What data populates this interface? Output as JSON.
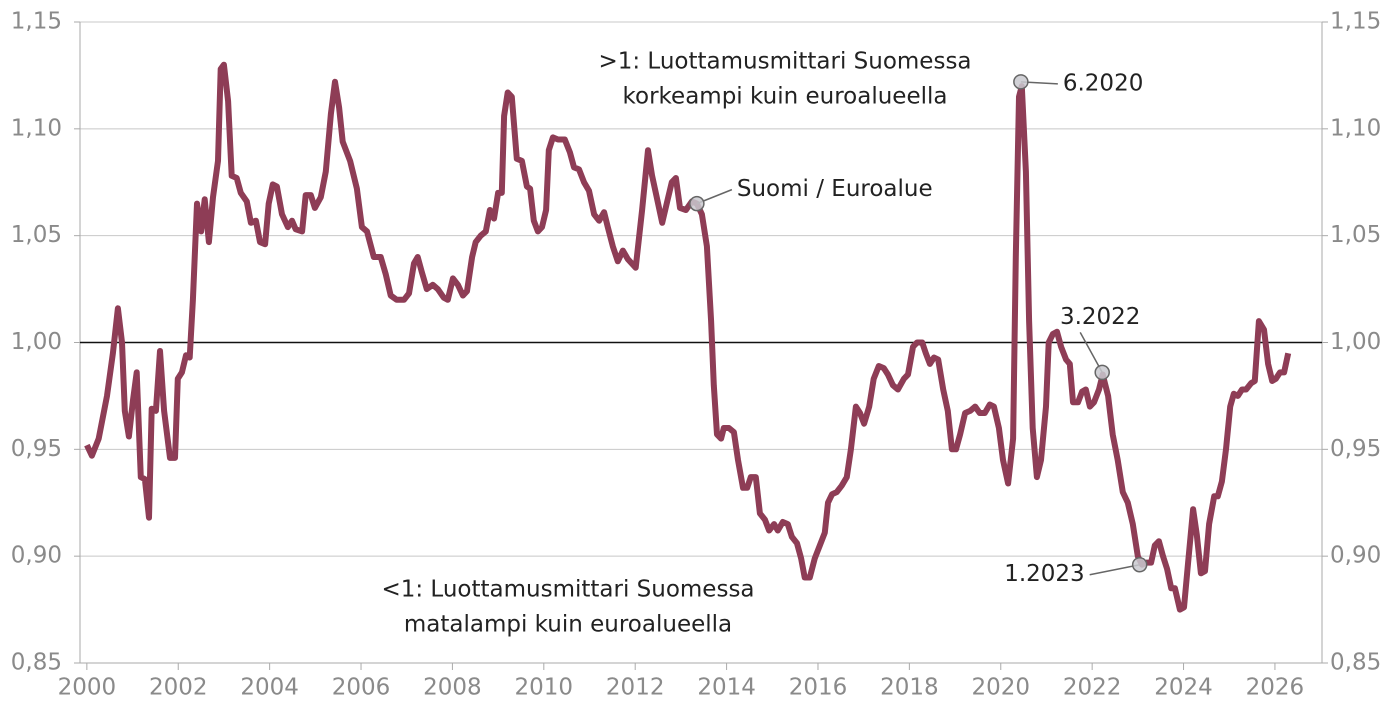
{
  "chart_data": {
    "type": "line",
    "notes": [
      [
        ">1: Luottamusmittari Suomessa",
        "korkeampi kuin euroalueella"
      ],
      [
        "<1: Luottamusmittari Suomessa",
        "matalampi kuin euroalueella"
      ]
    ],
    "annotations": [
      {
        "text": "Suomi / Euroalue",
        "x": 2013.35,
        "y": 1.065
      },
      {
        "text": "6.2020",
        "x": 2020.44,
        "y": 1.122
      },
      {
        "text": "3.2022",
        "x": 2022.22,
        "y": 0.986
      },
      {
        "text": "1.2023",
        "x": 2023.04,
        "y": 0.896
      }
    ],
    "reference_line": 1,
    "x": [
      2000.0,
      2000.11,
      2000.26,
      2000.44,
      2000.57,
      2000.68,
      2000.77,
      2000.83,
      2000.92,
      2001.01,
      2001.09,
      2001.18,
      2001.27,
      2001.36,
      2001.42,
      2001.51,
      2001.6,
      2001.69,
      2001.82,
      2001.93,
      2001.99,
      2002.08,
      2002.17,
      2002.25,
      2002.32,
      2002.41,
      2002.5,
      2002.58,
      2002.67,
      2002.76,
      2002.87,
      2002.93,
      2003.0,
      2003.09,
      2003.17,
      2003.28,
      2003.37,
      2003.5,
      2003.59,
      2003.7,
      2003.79,
      2003.9,
      2003.98,
      2004.07,
      2004.16,
      2004.27,
      2004.4,
      2004.49,
      2004.57,
      2004.71,
      2004.79,
      2004.9,
      2004.99,
      2005.12,
      2005.23,
      2005.34,
      2005.43,
      2005.52,
      2005.6,
      2005.76,
      2005.91,
      2006.02,
      2006.13,
      2006.28,
      2006.43,
      2006.54,
      2006.65,
      2006.78,
      2006.94,
      2007.05,
      2007.16,
      2007.24,
      2007.33,
      2007.44,
      2007.57,
      2007.68,
      2007.81,
      2007.9,
      2008.01,
      2008.12,
      2008.23,
      2008.32,
      2008.43,
      2008.51,
      2008.62,
      2008.73,
      2008.82,
      2008.91,
      2009.0,
      2009.08,
      2009.13,
      2009.21,
      2009.3,
      2009.41,
      2009.52,
      2009.63,
      2009.7,
      2009.78,
      2009.87,
      2009.96,
      2010.05,
      2010.11,
      2010.2,
      2010.31,
      2010.46,
      2010.57,
      2010.66,
      2010.77,
      2010.88,
      2010.99,
      2011.1,
      2011.21,
      2011.32,
      2011.4,
      2011.51,
      2011.62,
      2011.73,
      2011.84,
      2012.01,
      2012.15,
      2012.28,
      2012.37,
      2012.45,
      2012.59,
      2012.7,
      2012.8,
      2012.89,
      2012.98,
      2013.11,
      2013.24,
      2013.35,
      2013.46,
      2013.57,
      2013.66,
      2013.72,
      2013.79,
      2013.88,
      2013.94,
      2014.05,
      2014.16,
      2014.25,
      2014.36,
      2014.45,
      2014.53,
      2014.64,
      2014.73,
      2014.84,
      2014.93,
      2015.04,
      2015.12,
      2015.23,
      2015.34,
      2015.43,
      2015.54,
      2015.63,
      2015.71,
      2015.82,
      2015.93,
      2016.04,
      2016.15,
      2016.22,
      2016.31,
      2016.41,
      2016.52,
      2016.63,
      2016.72,
      2016.83,
      2016.92,
      2017.01,
      2017.12,
      2017.22,
      2017.33,
      2017.44,
      2017.53,
      2017.64,
      2017.75,
      2017.88,
      2017.97,
      2018.08,
      2018.17,
      2018.28,
      2018.36,
      2018.45,
      2018.54,
      2018.63,
      2018.74,
      2018.84,
      2018.93,
      2019.02,
      2019.11,
      2019.22,
      2019.33,
      2019.44,
      2019.54,
      2019.65,
      2019.76,
      2019.85,
      2019.96,
      2020.05,
      2020.16,
      2020.27,
      2020.33,
      2020.4,
      2020.46,
      2020.55,
      2020.62,
      2020.7,
      2020.79,
      2020.88,
      2020.99,
      2021.05,
      2021.14,
      2021.23,
      2021.32,
      2021.43,
      2021.51,
      2021.58,
      2021.69,
      2021.78,
      2021.86,
      2021.95,
      2022.04,
      2022.15,
      2022.23,
      2022.35,
      2022.45,
      2022.56,
      2022.67,
      2022.78,
      2022.89,
      2023.0,
      2023.09,
      2023.18,
      2023.29,
      2023.37,
      2023.46,
      2023.55,
      2023.64,
      2023.73,
      2023.81,
      2023.92,
      2024.01,
      2024.1,
      2024.21,
      2024.29,
      2024.38,
      2024.47,
      2024.56,
      2024.67,
      2024.75,
      2024.84,
      2024.93,
      2025.02,
      2025.1,
      2025.19,
      2025.28,
      2025.37,
      2025.48,
      2025.56,
      2025.65,
      2025.76,
      2025.85,
      2025.94,
      2026.02,
      2026.11,
      2026.2,
      2026.29
    ],
    "series": [
      {
        "color": "#8e3d56",
        "values": [
          0.952,
          0.947,
          0.955,
          0.975,
          0.995,
          1.016,
          1.0,
          0.968,
          0.956,
          0.973,
          0.986,
          0.937,
          0.936,
          0.918,
          0.969,
          0.968,
          0.996,
          0.968,
          0.946,
          0.946,
          0.983,
          0.986,
          0.994,
          0.993,
          1.02,
          1.065,
          1.052,
          1.067,
          1.047,
          1.068,
          1.085,
          1.128,
          1.13,
          1.113,
          1.078,
          1.077,
          1.07,
          1.066,
          1.056,
          1.057,
          1.047,
          1.046,
          1.065,
          1.074,
          1.073,
          1.06,
          1.054,
          1.057,
          1.053,
          1.052,
          1.069,
          1.069,
          1.063,
          1.068,
          1.08,
          1.107,
          1.122,
          1.11,
          1.094,
          1.085,
          1.072,
          1.054,
          1.052,
          1.04,
          1.04,
          1.032,
          1.022,
          1.02,
          1.02,
          1.023,
          1.037,
          1.04,
          1.033,
          1.025,
          1.027,
          1.025,
          1.021,
          1.02,
          1.03,
          1.027,
          1.022,
          1.024,
          1.04,
          1.047,
          1.05,
          1.052,
          1.062,
          1.058,
          1.07,
          1.07,
          1.106,
          1.117,
          1.115,
          1.086,
          1.085,
          1.073,
          1.072,
          1.057,
          1.052,
          1.054,
          1.062,
          1.09,
          1.096,
          1.095,
          1.095,
          1.089,
          1.082,
          1.081,
          1.075,
          1.071,
          1.06,
          1.057,
          1.061,
          1.054,
          1.045,
          1.038,
          1.043,
          1.039,
          1.035,
          1.062,
          1.09,
          1.078,
          1.07,
          1.056,
          1.066,
          1.075,
          1.077,
          1.063,
          1.062,
          1.066,
          1.065,
          1.06,
          1.045,
          1.01,
          0.98,
          0.957,
          0.955,
          0.96,
          0.96,
          0.958,
          0.945,
          0.932,
          0.932,
          0.937,
          0.937,
          0.92,
          0.917,
          0.912,
          0.915,
          0.912,
          0.916,
          0.915,
          0.909,
          0.906,
          0.899,
          0.89,
          0.89,
          0.899,
          0.905,
          0.911,
          0.925,
          0.929,
          0.93,
          0.933,
          0.937,
          0.95,
          0.97,
          0.967,
          0.962,
          0.97,
          0.983,
          0.989,
          0.988,
          0.985,
          0.98,
          0.978,
          0.983,
          0.985,
          0.998,
          1.0,
          1.0,
          0.995,
          0.99,
          0.993,
          0.992,
          0.978,
          0.968,
          0.95,
          0.95,
          0.957,
          0.967,
          0.968,
          0.97,
          0.967,
          0.967,
          0.971,
          0.97,
          0.96,
          0.945,
          0.934,
          0.955,
          1.04,
          1.115,
          1.12,
          1.08,
          1.01,
          0.96,
          0.937,
          0.945,
          0.97,
          1.0,
          1.004,
          1.005,
          0.998,
          0.992,
          0.99,
          0.972,
          0.972,
          0.977,
          0.978,
          0.97,
          0.972,
          0.978,
          0.985,
          0.975,
          0.957,
          0.945,
          0.93,
          0.925,
          0.915,
          0.9,
          0.896,
          0.897,
          0.897,
          0.905,
          0.907,
          0.9,
          0.894,
          0.885,
          0.885,
          0.875,
          0.876,
          0.897,
          0.922,
          0.91,
          0.892,
          0.893,
          0.915,
          0.928,
          0.928,
          0.935,
          0.95,
          0.97,
          0.976,
          0.975,
          0.978,
          0.978,
          0.981,
          0.982,
          1.01,
          1.006,
          0.99,
          0.982,
          0.983,
          0.986,
          0.986,
          0.995
        ]
      }
    ],
    "xlim": [
      1999.85,
      2027.03
    ],
    "xticks": [
      2000,
      2002,
      2004,
      2006,
      2008,
      2010,
      2012,
      2014,
      2016,
      2018,
      2020,
      2022,
      2024,
      2026
    ],
    "ylim": [
      0.85,
      1.15
    ],
    "yticks": [
      {
        "value": 0.85,
        "label": "0,85"
      },
      {
        "value": 0.9,
        "label": "0,90"
      },
      {
        "value": 0.95,
        "label": "0,95"
      },
      {
        "value": 1.0,
        "label": "1,00"
      },
      {
        "value": 1.05,
        "label": "1,05"
      },
      {
        "value": 1.1,
        "label": "1,10"
      },
      {
        "value": 1.15,
        "label": "1,15"
      }
    ],
    "y2lim": [
      0.85,
      1.15
    ],
    "y2ticks": [
      {
        "value": 0.85,
        "label": "0,85"
      },
      {
        "value": 0.9,
        "label": "0,90"
      },
      {
        "value": 0.95,
        "label": "0,95"
      },
      {
        "value": 1.0,
        "label": "1,00"
      },
      {
        "value": 1.05,
        "label": "1,05"
      },
      {
        "value": 1.1,
        "label": "1,10"
      },
      {
        "value": 1.15,
        "label": "1,15"
      }
    ],
    "grid": true
  }
}
